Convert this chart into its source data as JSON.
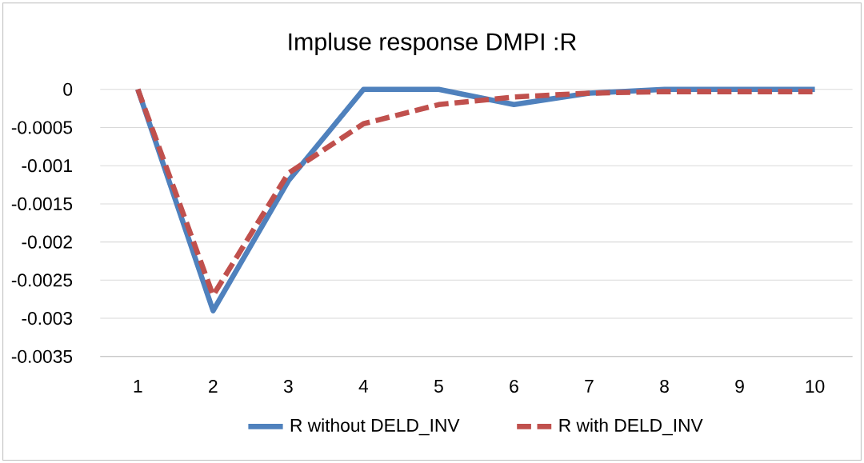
{
  "chart_data": {
    "type": "line",
    "title": "Impluse response DMPI :R",
    "categories": [
      "1",
      "2",
      "3",
      "4",
      "5",
      "6",
      "7",
      "8",
      "9",
      "10"
    ],
    "series": [
      {
        "name": "R without DELD_INV",
        "color": "#4f81bd",
        "line_style": "solid",
        "values": [
          0,
          -0.0029,
          -0.0012,
          0,
          0,
          -0.0002,
          -5e-05,
          0,
          0,
          0
        ]
      },
      {
        "name": "R with DELD_INV",
        "color": "#c0504d",
        "line_style": "dashed",
        "values": [
          0,
          -0.0027,
          -0.0011,
          -0.00045,
          -0.0002,
          -0.0001,
          -5e-05,
          -3e-05,
          -3e-05,
          -3e-05
        ]
      }
    ],
    "ylim": [
      -0.0035,
      0
    ],
    "yticks": [
      0,
      -0.0005,
      -0.001,
      -0.0015,
      -0.002,
      -0.0025,
      -0.003,
      -0.0035
    ],
    "grid": "y",
    "legend": "bottom",
    "marker": "none"
  }
}
